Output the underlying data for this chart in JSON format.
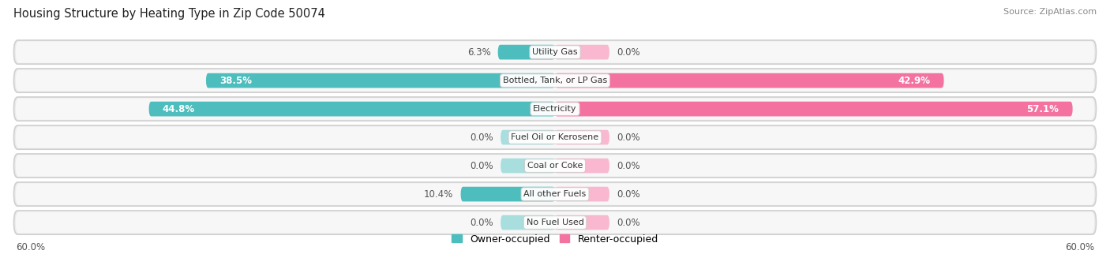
{
  "title": "Housing Structure by Heating Type in Zip Code 50074",
  "source": "Source: ZipAtlas.com",
  "categories": [
    "Utility Gas",
    "Bottled, Tank, or LP Gas",
    "Electricity",
    "Fuel Oil or Kerosene",
    "Coal or Coke",
    "All other Fuels",
    "No Fuel Used"
  ],
  "owner_values": [
    6.3,
    38.5,
    44.8,
    0.0,
    0.0,
    10.4,
    0.0
  ],
  "renter_values": [
    0.0,
    42.9,
    57.1,
    0.0,
    0.0,
    0.0,
    0.0
  ],
  "owner_color": "#4dbdbd",
  "renter_color": "#f472a0",
  "owner_stub_color": "#a8dede",
  "renter_stub_color": "#f9b8cf",
  "row_bg_color": "#ebebeb",
  "row_bg_inner": "#f7f7f7",
  "xlim": 60.0,
  "background_color": "#ffffff",
  "title_fontsize": 10.5,
  "source_fontsize": 8,
  "label_fontsize": 8.5,
  "category_fontsize": 8,
  "stub_size": 6.0
}
